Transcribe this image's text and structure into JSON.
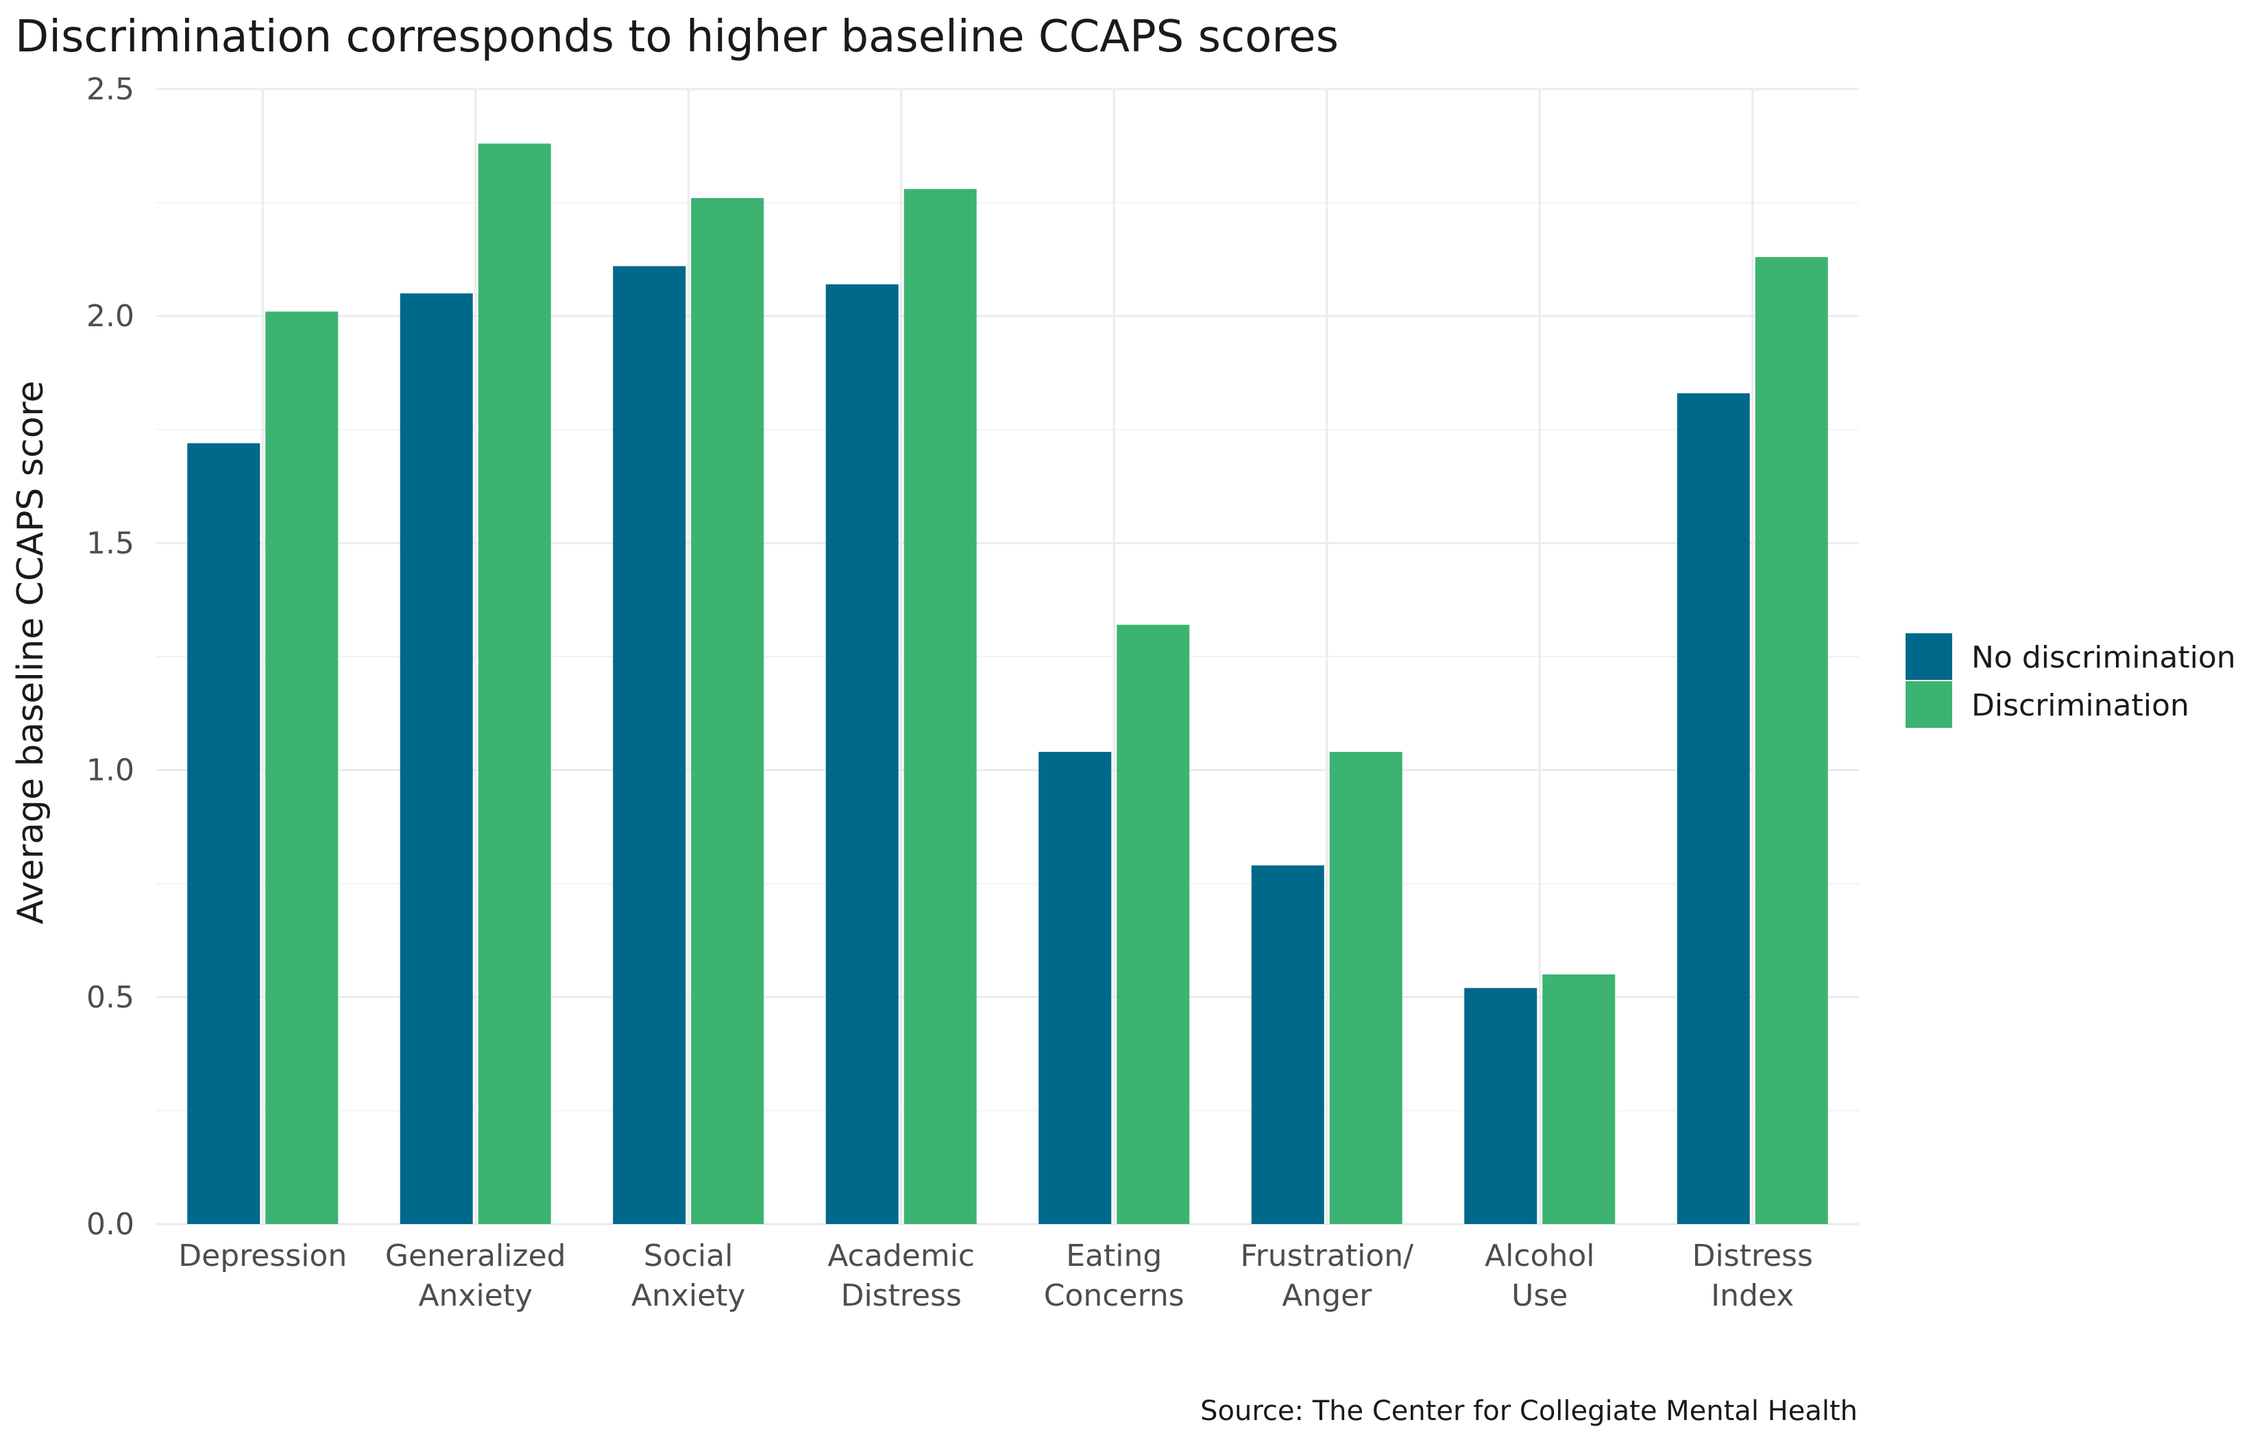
{
  "chart_data": {
    "type": "bar",
    "title": "Discrimination corresponds to higher baseline CCAPS scores",
    "xlabel": "",
    "ylabel": "Average baseline CCAPS score",
    "caption": "Source: The Center for Collegiate Mental Health",
    "categories": [
      [
        "Depression"
      ],
      [
        "Generalized",
        "Anxiety"
      ],
      [
        "Social",
        "Anxiety"
      ],
      [
        "Academic",
        "Distress"
      ],
      [
        "Eating",
        "Concerns"
      ],
      [
        "Frustration/",
        "Anger"
      ],
      [
        "Alcohol",
        "Use"
      ],
      [
        "Distress",
        "Index"
      ]
    ],
    "series": [
      {
        "name": "No discrimination",
        "color": "#00688b",
        "values": [
          1.72,
          2.05,
          2.11,
          2.07,
          1.04,
          0.79,
          0.52,
          1.83
        ]
      },
      {
        "name": "Discrimination",
        "color": "#3cb371",
        "values": [
          2.01,
          2.38,
          2.26,
          2.28,
          1.32,
          1.04,
          0.55,
          2.13
        ]
      }
    ],
    "ylim": [
      0,
      2.5
    ],
    "yticks": [
      0.0,
      0.5,
      1.0,
      1.5,
      2.0,
      2.5
    ],
    "ytick_labels": [
      "0.0",
      "0.5",
      "1.0",
      "1.5",
      "2.0",
      "2.5"
    ],
    "grid": true,
    "legend_position": "right"
  }
}
